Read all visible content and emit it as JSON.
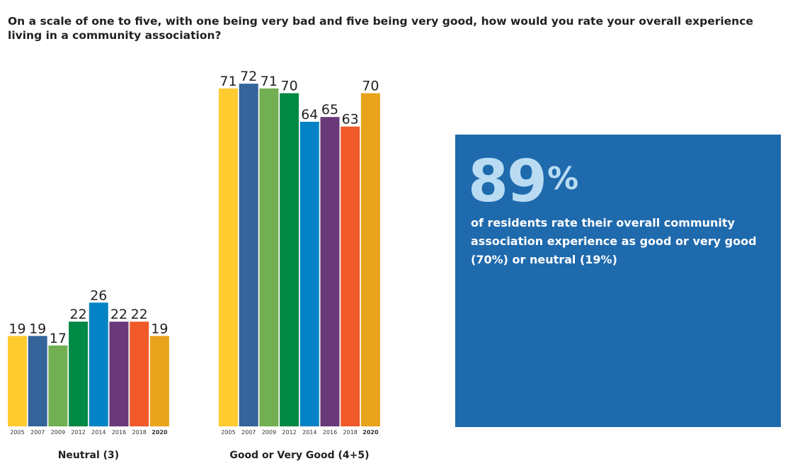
{
  "question": "On a scale of one to five, with one being very bad and five being very good, how would you rate your overall experience living in a community association?",
  "callout": {
    "number": "89",
    "unit": "%",
    "text": "of residents rate their overall community association experience as good or very good (70%) or neutral (19%)",
    "background": "#1f6aad"
  },
  "colors": [
    "#FFCB2F",
    "#34649A",
    "#72AE52",
    "#008845",
    "#0383C5",
    "#693979",
    "#F05A2A",
    "#EAA31C"
  ],
  "chart_data": [
    {
      "type": "bar",
      "title": "Neutral (3)",
      "categories": [
        "2005",
        "2007",
        "2009",
        "2012",
        "2014",
        "2016",
        "2018",
        "2020"
      ],
      "values": [
        19,
        19,
        17,
        22,
        26,
        22,
        22,
        19
      ],
      "highlight_category": "2020",
      "ylim": [
        0,
        75
      ]
    },
    {
      "type": "bar",
      "title": "Good or Very Good (4+5)",
      "categories": [
        "2005",
        "2007",
        "2009",
        "2012",
        "2014",
        "2016",
        "2018",
        "2020"
      ],
      "values": [
        71,
        72,
        71,
        70,
        64,
        65,
        63,
        70
      ],
      "highlight_category": "2020",
      "ylim": [
        0,
        75
      ]
    }
  ]
}
